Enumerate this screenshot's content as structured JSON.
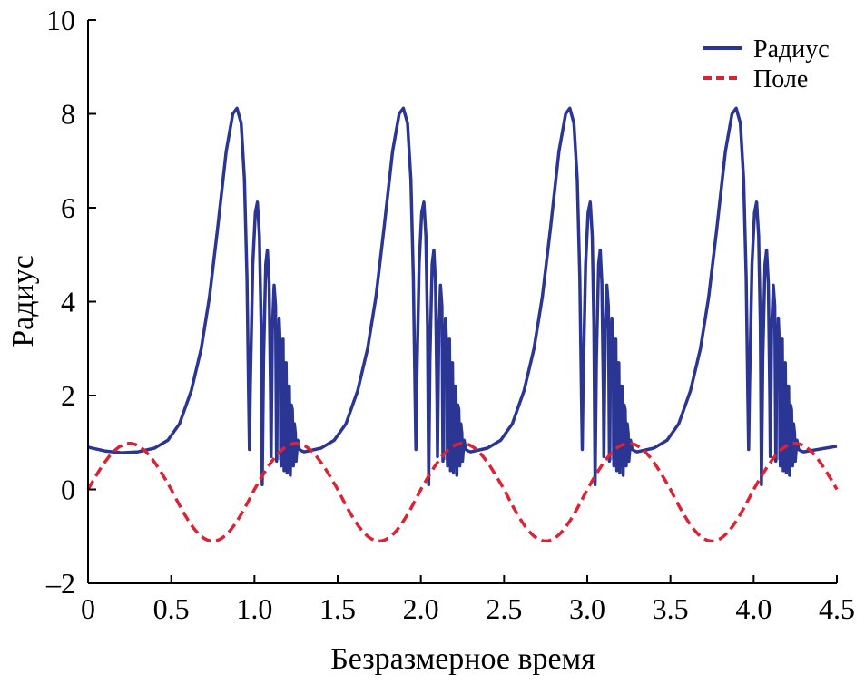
{
  "chart_data": {
    "type": "line",
    "title": "",
    "xlabel": "Безразмерное время",
    "ylabel": "Радиус",
    "xlim": [
      0,
      4.5
    ],
    "ylim": [
      -2,
      10
    ],
    "xticks": [
      0,
      0.5,
      1.0,
      1.5,
      2.0,
      2.5,
      3.0,
      3.5,
      4.0,
      4.5
    ],
    "xtick_labels": [
      "0",
      "0.5",
      "1.0",
      "1.5",
      "2.0",
      "2.5",
      "3.0",
      "3.5",
      "4.0",
      "4.5"
    ],
    "yticks": [
      -2,
      0,
      2,
      4,
      6,
      8,
      10
    ],
    "ytick_labels": [
      "–2",
      "0",
      "2",
      "4",
      "6",
      "8",
      "10"
    ],
    "grid": false,
    "legend_position": "top-right",
    "series": [
      {
        "name": "Радиус",
        "color": "#2b3593",
        "style": "solid",
        "initial_points": [
          [
            0,
            0.9
          ],
          [
            0.1,
            0.82
          ],
          [
            0.2,
            0.78
          ],
          [
            0.3,
            0.8
          ]
        ],
        "cycle_period": 1,
        "cycle_count": 4,
        "cycle_points": [
          [
            0.3,
            0.8
          ],
          [
            0.4,
            0.88
          ],
          [
            0.48,
            1.05
          ],
          [
            0.55,
            1.4
          ],
          [
            0.62,
            2.1
          ],
          [
            0.68,
            3.0
          ],
          [
            0.73,
            4.1
          ],
          [
            0.78,
            5.6
          ],
          [
            0.83,
            7.2
          ],
          [
            0.87,
            8.0
          ],
          [
            0.895,
            8.12
          ],
          [
            0.92,
            7.8
          ],
          [
            0.94,
            6.6
          ],
          [
            0.955,
            4.5
          ],
          [
            0.965,
            2.0
          ],
          [
            0.97,
            0.85
          ],
          [
            0.975,
            2.2
          ],
          [
            0.99,
            4.8
          ],
          [
            1.005,
            5.9
          ],
          [
            1.018,
            6.12
          ],
          [
            1.03,
            5.4
          ],
          [
            1.04,
            3.5
          ],
          [
            1.047,
            0.1
          ],
          [
            1.055,
            2.8
          ],
          [
            1.068,
            4.8
          ],
          [
            1.078,
            5.1
          ],
          [
            1.088,
            4.4
          ],
          [
            1.097,
            2.0
          ],
          [
            1.1,
            0.7
          ],
          [
            1.108,
            3.4
          ],
          [
            1.118,
            4.35
          ],
          [
            1.127,
            3.9
          ],
          [
            1.133,
            0.6
          ],
          [
            1.14,
            2.8
          ],
          [
            1.148,
            3.65
          ],
          [
            1.156,
            3.0
          ],
          [
            1.16,
            0.5
          ],
          [
            1.166,
            2.7
          ],
          [
            1.172,
            3.2
          ],
          [
            1.178,
            0.4
          ],
          [
            1.184,
            2.6
          ],
          [
            1.19,
            2.7
          ],
          [
            1.196,
            0.35
          ],
          [
            1.203,
            2.2
          ],
          [
            1.21,
            2.2
          ],
          [
            1.216,
            0.3
          ],
          [
            1.222,
            1.8
          ],
          [
            1.228,
            1.7
          ],
          [
            1.234,
            0.5
          ],
          [
            1.24,
            1.4
          ],
          [
            1.246,
            1.2
          ],
          [
            1.25,
            0.6
          ],
          [
            1.26,
            1.05
          ],
          [
            1.27,
            0.85
          ],
          [
            1.285,
            0.82
          ],
          [
            1.3,
            0.8
          ]
        ]
      },
      {
        "name": "Поле",
        "color": "#dd2233",
        "style": "dashed",
        "function": "sine",
        "amplitude_max": 0.98,
        "amplitude_min": -1.1,
        "period": 1,
        "phase": 0
      }
    ]
  }
}
